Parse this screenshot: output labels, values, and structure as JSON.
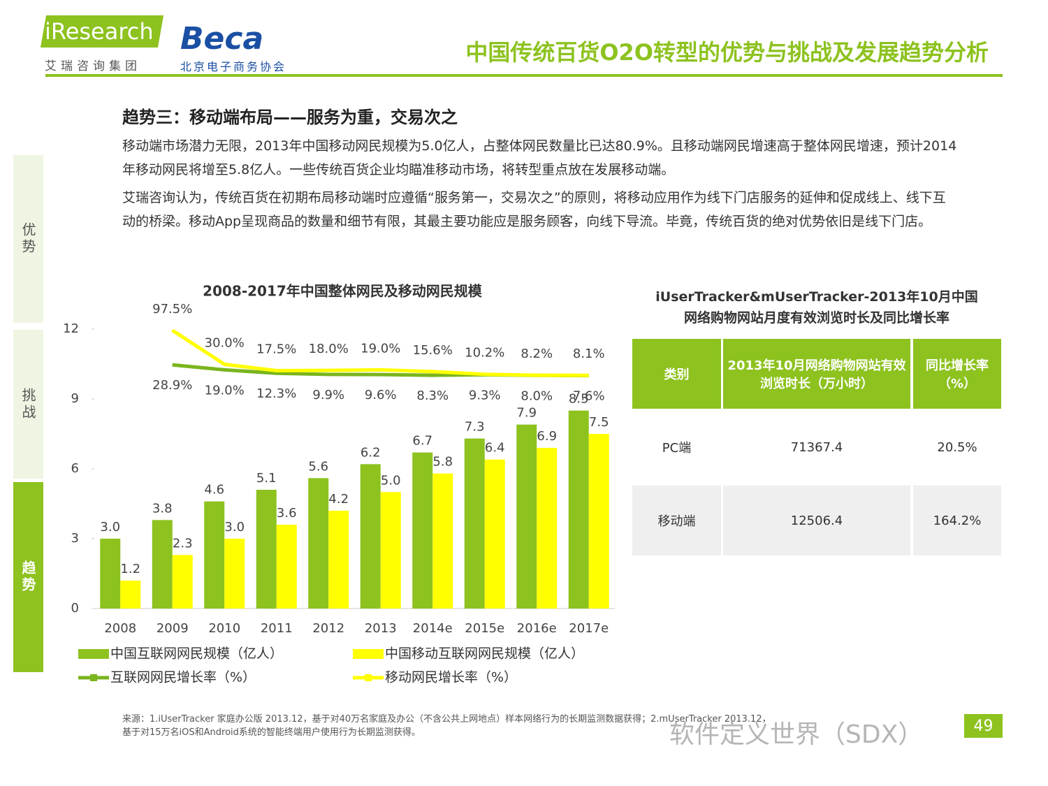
{
  "header": {
    "logo1": "iResearch",
    "logo1_sub": "艾瑞咨询集团",
    "logo2": "Beca",
    "logo2_sub": "北京电子商务协会",
    "title": "中国传统百货O2O转型的优势与挑战及发展趋势分析"
  },
  "sidebar": [
    "优势",
    "挑战",
    "趋势"
  ],
  "section": {
    "heading": "趋势三：移动端布局——服务为重，交易次之",
    "paragraphs": [
      "移动端市场潜力无限，2013年中国移动网民规模为5.0亿人，占整体网民数量比已达80.9%。且移动端网民增速高于整体网民增速，预计2014年移动网民将增至5.8亿人。一些传统百货企业均瞄准移动市场，将转型重点放在发展移动端。",
      "艾瑞咨询认为，传统百货在初期布局移动端时应遵循“服务第一，交易次之”的原则，将移动应用作为线下门店服务的延伸和促成线上、线下互动的桥梁。移动App呈现商品的数量和细节有限，其最主要功能应是服务顾客，向线下导流。毕竟，传统百货的绝对优势依旧是线下门店。"
    ]
  },
  "chart_data": {
    "type": "bar",
    "title": "2008-2017年中国整体网民及移动网民规模",
    "categories": [
      "2008",
      "2009",
      "2010",
      "2011",
      "2012",
      "2013",
      "2014e",
      "2015e",
      "2016e",
      "2017e"
    ],
    "ylim": [
      0,
      12
    ],
    "yticks": [
      0,
      3,
      6,
      9,
      12
    ],
    "y2lim": [
      -455,
      100
    ],
    "series": [
      {
        "name": "中国互联网网民规模（亿人）",
        "type": "bar",
        "color": "#8dc21f",
        "values": [
          3.0,
          3.8,
          4.6,
          5.1,
          5.6,
          6.2,
          6.7,
          7.3,
          7.9,
          8.5
        ],
        "value_labels": [
          "3.0",
          "3.8",
          "4.6",
          "5.1",
          "5.6",
          "6.2",
          "6.7",
          "7.3",
          "7.9",
          "8.5"
        ]
      },
      {
        "name": "中国移动互联网网民规模（亿人）",
        "type": "bar",
        "color": "#ffff00",
        "values": [
          1.2,
          2.3,
          3.0,
          3.6,
          4.2,
          5.0,
          5.8,
          6.4,
          6.9,
          7.5
        ],
        "value_labels": [
          "1.2",
          "2.3",
          "3.0",
          "3.6",
          "4.2",
          "5.0",
          "5.8",
          "6.4",
          "6.9",
          "7.5"
        ]
      },
      {
        "name": "互联网网民增长率（%）",
        "type": "line",
        "axis": "y2",
        "color": "#7ab51d",
        "values": [
          null,
          28.9,
          19.0,
          12.3,
          9.9,
          9.6,
          8.3,
          9.3,
          8.0,
          7.6
        ],
        "value_labels": [
          null,
          "28.9%",
          "19.0%",
          "12.3%",
          "9.9%",
          "9.6%",
          "8.3%",
          "9.3%",
          "8.0%",
          "7.6%"
        ]
      },
      {
        "name": "移动网民增长率（%）",
        "type": "line",
        "axis": "y2",
        "color": "#ffff00",
        "values": [
          null,
          97.5,
          30.0,
          17.5,
          18.0,
          19.0,
          15.6,
          10.2,
          8.2,
          8.1
        ],
        "value_labels": [
          null,
          "97.5%",
          "30.0%",
          "17.5%",
          "18.0%",
          "19.0%",
          "15.6%",
          "10.2%",
          "8.2%",
          "8.1%"
        ]
      }
    ]
  },
  "table": {
    "title": [
      "iUserTracker&mUserTracker-2013年10月中国",
      "网络购物网站月度有效浏览时长及同比增长率"
    ],
    "header": [
      "类别",
      "2013年10月网络购物网站有效浏览时长（万小时）",
      "同比增长率（%）"
    ],
    "rows": [
      [
        "PC端",
        "71367.4",
        "20.5%"
      ],
      [
        "移动端",
        "12506.4",
        "164.2%"
      ]
    ]
  },
  "footer": {
    "source": [
      "来源：1.iUserTracker 家庭办公版 2013.12，基于对40万名家庭及办公（不含公共上网地点）样本网络行为的长期监测数据获得；2.mUserTracker 2013.12，",
      "基于对15万名iOS和Android系统的智能终端用户使用行为长期监测获得。"
    ],
    "page": "49",
    "watermark": "软件定义世界（SDX）"
  }
}
